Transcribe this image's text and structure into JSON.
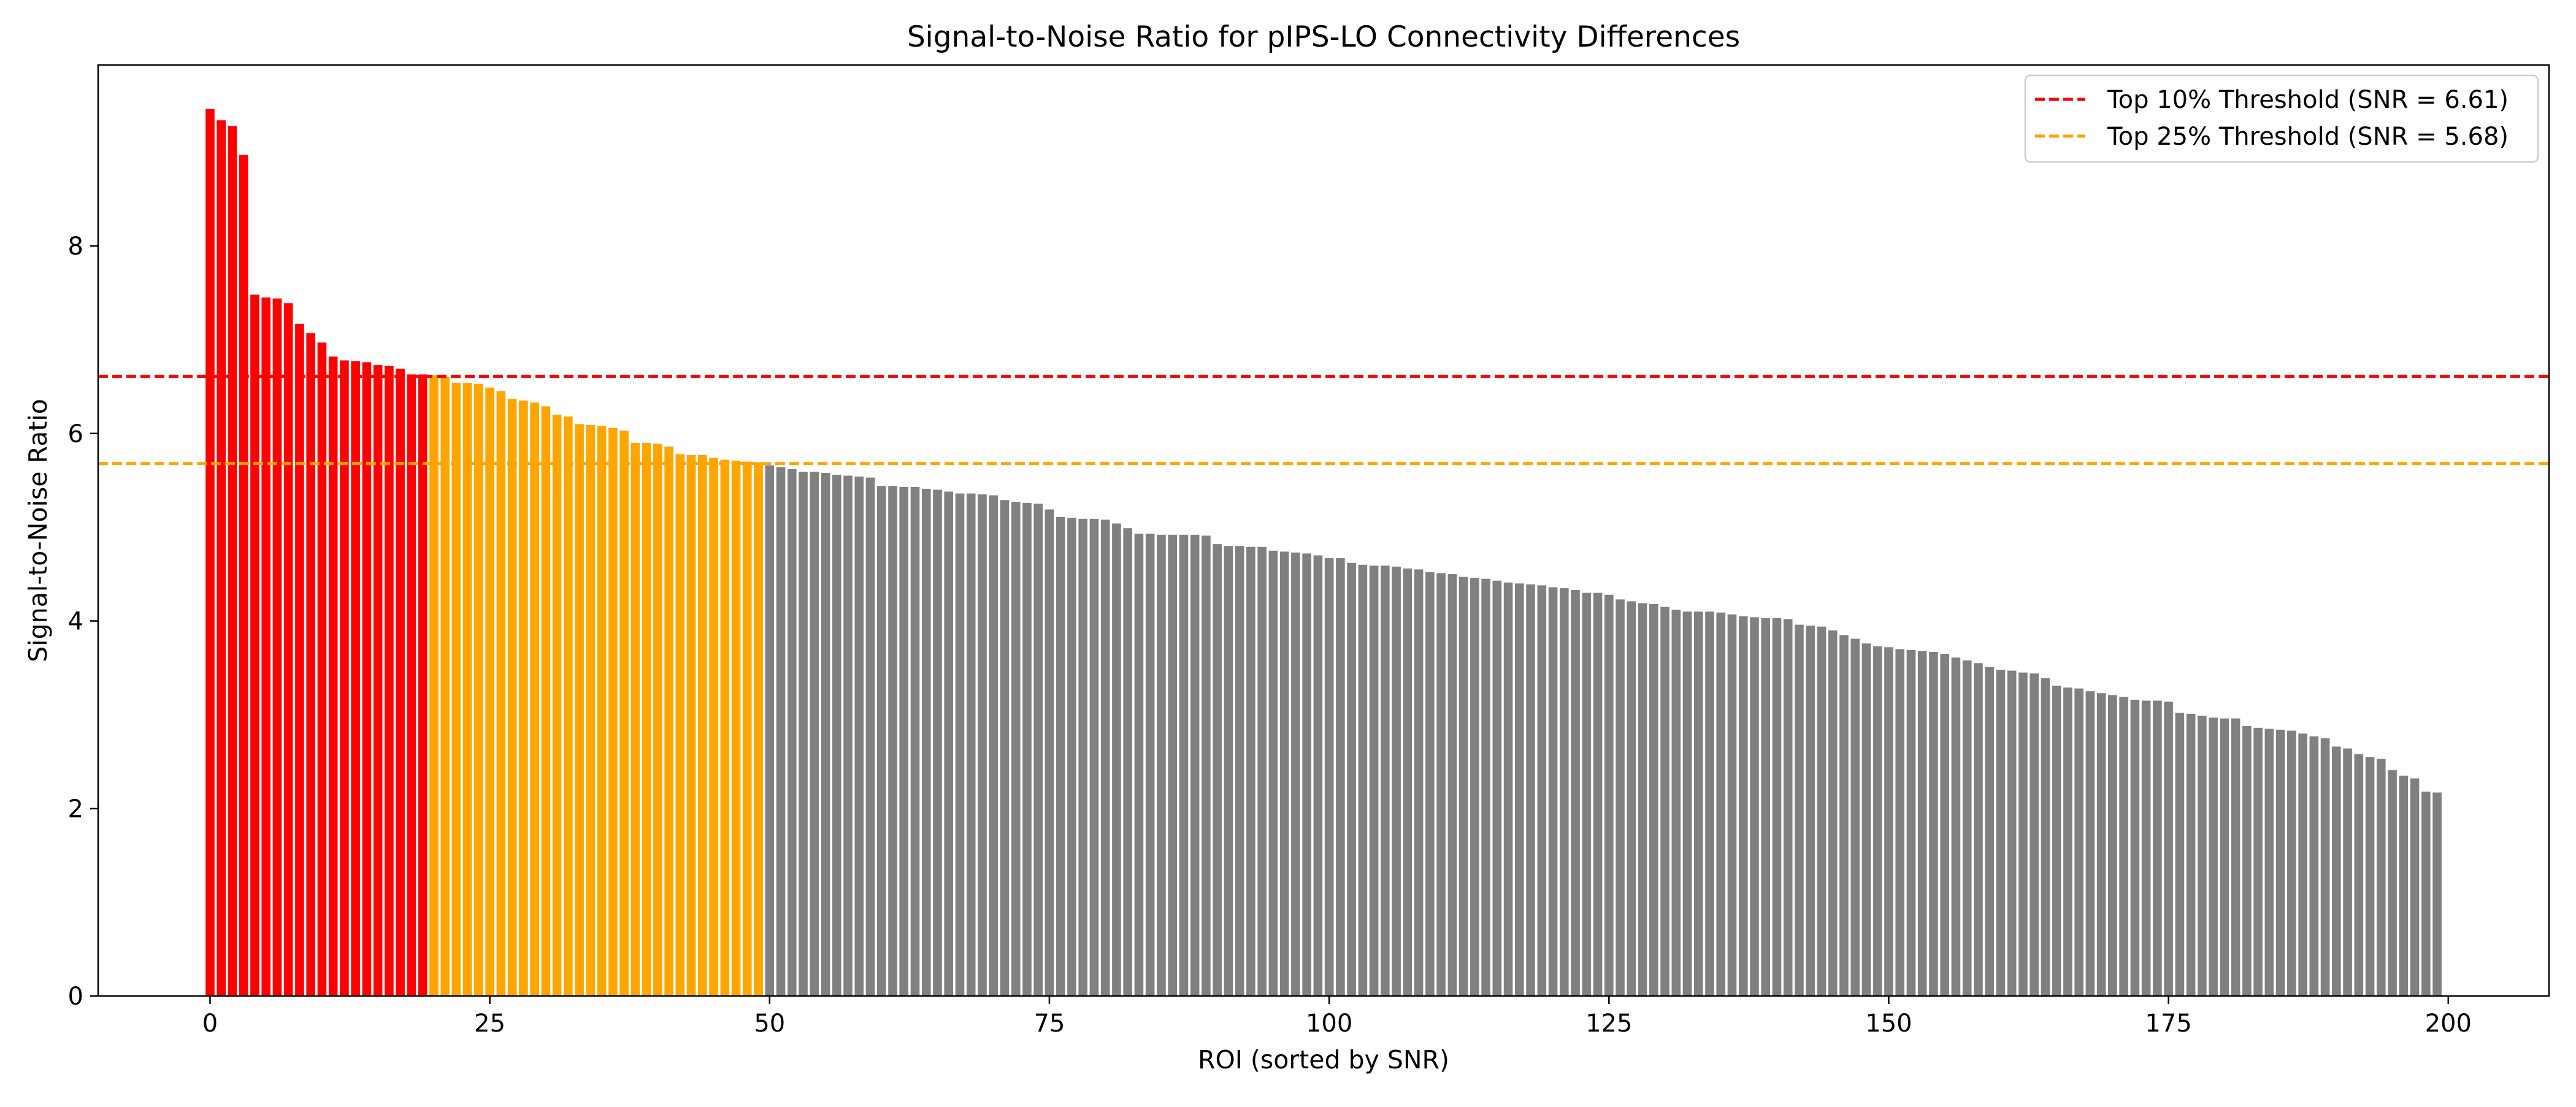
{
  "chart_data": {
    "type": "bar",
    "title": "Signal-to-Noise Ratio for pIPS-LO Connectivity Differences",
    "xlabel": "ROI (sorted by SNR)",
    "ylabel": "Signal-to-Noise Ratio",
    "xlim": [
      -10,
      209
    ],
    "ylim": [
      0,
      9.93
    ],
    "xticks": [
      0,
      25,
      50,
      75,
      100,
      125,
      150,
      175,
      200
    ],
    "yticks": [
      0,
      2,
      4,
      6,
      8
    ],
    "grid": false,
    "legend_position": "top-right",
    "colors": {
      "top10": "#ff0000",
      "top25": "#ffa500",
      "rest": "#808080",
      "axes": "#000000",
      "background": "#ffffff"
    },
    "thresholds": [
      {
        "name": "Top 10% Threshold (SNR = 6.61)",
        "value": 6.61,
        "color": "#ff0000",
        "style": "dashed"
      },
      {
        "name": "Top 25% Threshold (SNR = 5.68)",
        "value": 5.68,
        "color": "#ffa500",
        "style": "dashed"
      }
    ],
    "groups": [
      {
        "group": "top10",
        "from_index": 0,
        "to_index": 19
      },
      {
        "group": "top25",
        "from_index": 20,
        "to_index": 49
      },
      {
        "group": "rest",
        "from_index": 50,
        "to_index": 199
      }
    ],
    "values": [
      9.46,
      9.34,
      9.28,
      8.97,
      7.48,
      7.45,
      7.44,
      7.39,
      7.17,
      7.07,
      6.97,
      6.82,
      6.78,
      6.77,
      6.76,
      6.73,
      6.72,
      6.69,
      6.63,
      6.63,
      6.62,
      6.6,
      6.54,
      6.54,
      6.53,
      6.49,
      6.45,
      6.37,
      6.35,
      6.33,
      6.29,
      6.2,
      6.18,
      6.1,
      6.09,
      6.08,
      6.06,
      6.03,
      5.9,
      5.9,
      5.89,
      5.86,
      5.78,
      5.77,
      5.77,
      5.74,
      5.72,
      5.71,
      5.7,
      5.69,
      5.66,
      5.64,
      5.62,
      5.59,
      5.59,
      5.58,
      5.56,
      5.55,
      5.54,
      5.53,
      5.44,
      5.44,
      5.43,
      5.43,
      5.41,
      5.4,
      5.38,
      5.36,
      5.36,
      5.35,
      5.34,
      5.29,
      5.27,
      5.26,
      5.25,
      5.19,
      5.11,
      5.1,
      5.09,
      5.09,
      5.08,
      5.04,
      4.99,
      4.93,
      4.93,
      4.92,
      4.92,
      4.92,
      4.92,
      4.91,
      4.82,
      4.8,
      4.8,
      4.79,
      4.79,
      4.75,
      4.74,
      4.73,
      4.72,
      4.7,
      4.67,
      4.67,
      4.62,
      4.6,
      4.59,
      4.59,
      4.58,
      4.56,
      4.55,
      4.52,
      4.51,
      4.5,
      4.47,
      4.46,
      4.45,
      4.43,
      4.41,
      4.4,
      4.39,
      4.38,
      4.36,
      4.35,
      4.33,
      4.3,
      4.3,
      4.28,
      4.23,
      4.21,
      4.19,
      4.18,
      4.15,
      4.12,
      4.1,
      4.1,
      4.1,
      4.09,
      4.07,
      4.05,
      4.04,
      4.03,
      4.03,
      4.02,
      3.96,
      3.95,
      3.94,
      3.9,
      3.85,
      3.81,
      3.76,
      3.73,
      3.72,
      3.7,
      3.69,
      3.68,
      3.67,
      3.65,
      3.61,
      3.58,
      3.55,
      3.51,
      3.48,
      3.47,
      3.45,
      3.44,
      3.39,
      3.31,
      3.29,
      3.28,
      3.25,
      3.23,
      3.21,
      3.19,
      3.16,
      3.15,
      3.15,
      3.14,
      3.02,
      3.01,
      2.99,
      2.97,
      2.96,
      2.96,
      2.88,
      2.86,
      2.85,
      2.84,
      2.83,
      2.8,
      2.77,
      2.75,
      2.66,
      2.64,
      2.58,
      2.55,
      2.53,
      2.41,
      2.35,
      2.32,
      2.18,
      2.17
    ]
  }
}
